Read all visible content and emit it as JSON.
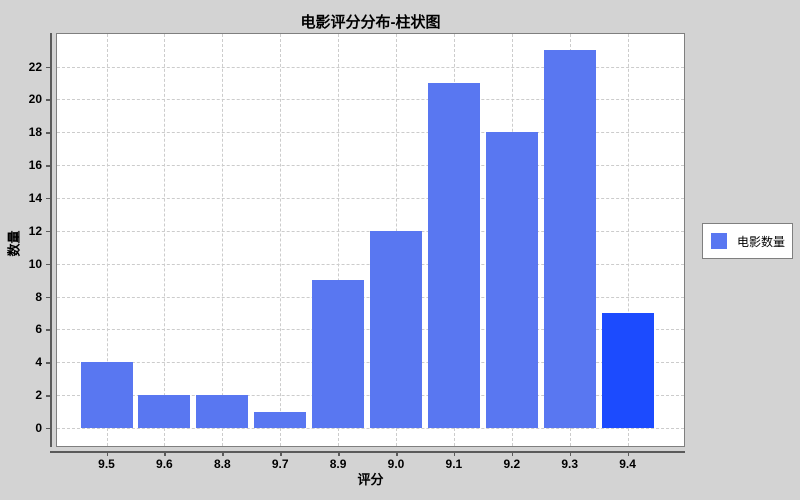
{
  "window": {
    "background": "#d3d3d3"
  },
  "chart_data": {
    "type": "bar",
    "title": "电影评分分布-柱状图",
    "xlabel": "评分",
    "ylabel": "数量",
    "categories": [
      "9.5",
      "9.6",
      "8.8",
      "9.7",
      "8.9",
      "9.0",
      "9.1",
      "9.2",
      "9.3",
      "9.4"
    ],
    "series": [
      {
        "name": "电影数量",
        "values": [
          4,
          2,
          2,
          1,
          9,
          12,
          21,
          18,
          23,
          7
        ]
      }
    ],
    "highlight_index": 9,
    "ylim": [
      -1.16,
      24.04
    ],
    "yticks": [
      0,
      2,
      4,
      6,
      8,
      10,
      12,
      14,
      16,
      18,
      20,
      22
    ],
    "grid": "dashed-both-axes",
    "legend_position": "right",
    "colors": {
      "bar": "#5977f1",
      "bar_highlight": "#1c4bfe",
      "background": "#d3d3d3",
      "plot_background": "#ffffff",
      "grid": "#cccccc",
      "axis_line": "#5a5a5a",
      "plot_outline": "#7f7f7f",
      "text": "#000000"
    }
  },
  "legend": {
    "items": [
      {
        "label": "电影数量",
        "swatch_color": "#5977f1"
      }
    ]
  }
}
